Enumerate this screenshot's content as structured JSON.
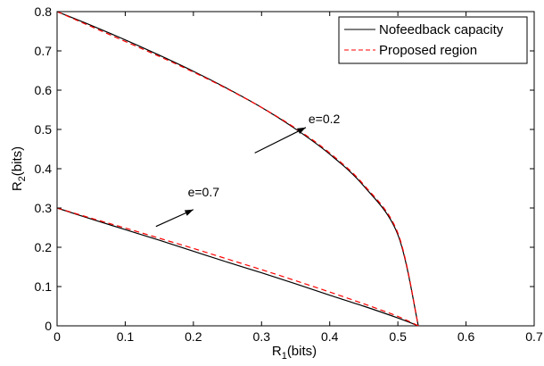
{
  "chart_data": {
    "type": "line",
    "title": "",
    "xlabel": {
      "main": "R",
      "sub": "1",
      "rest": "(bits)"
    },
    "ylabel": {
      "main": "R",
      "sub": "2",
      "rest": "(bits)"
    },
    "xlim": [
      0,
      0.7
    ],
    "ylim": [
      0,
      0.8
    ],
    "xticks": [
      0,
      0.1,
      0.2,
      0.3,
      0.4,
      0.5,
      0.6,
      0.7
    ],
    "yticks": [
      0,
      0.1,
      0.2,
      0.3,
      0.4,
      0.5,
      0.6,
      0.7,
      0.8
    ],
    "xtick_labels": [
      "0",
      "0.1",
      "0.2",
      "0.3",
      "0.4",
      "0.5",
      "0.6",
      "0.7"
    ],
    "ytick_labels": [
      "0",
      "0.1",
      "0.2",
      "0.3",
      "0.4",
      "0.5",
      "0.6",
      "0.7",
      "0.8"
    ],
    "grid": false,
    "legend_position": "top-right",
    "colors": {
      "nofeedback": "#000000",
      "proposed": "#ff0000"
    },
    "series": [
      {
        "name": "Nofeedback capacity",
        "style": "solid",
        "color": "#000000",
        "curve": "e=0.2",
        "x": [
          0,
          0.05,
          0.1,
          0.15,
          0.2,
          0.25,
          0.3,
          0.35,
          0.4,
          0.45,
          0.5,
          0.53
        ],
        "y": [
          0.8,
          0.765,
          0.728,
          0.689,
          0.648,
          0.604,
          0.556,
          0.501,
          0.437,
          0.356,
          0.232,
          0.0
        ]
      },
      {
        "name": "Proposed region",
        "style": "dashed",
        "color": "#ff0000",
        "curve": "e=0.2",
        "x": [
          0,
          0.05,
          0.1,
          0.15,
          0.2,
          0.25,
          0.3,
          0.35,
          0.4,
          0.45,
          0.5,
          0.53
        ],
        "y": [
          0.8,
          0.762,
          0.724,
          0.686,
          0.646,
          0.603,
          0.556,
          0.503,
          0.44,
          0.359,
          0.236,
          0.0
        ]
      },
      {
        "name": "Nofeedback capacity",
        "style": "solid",
        "color": "#000000",
        "curve": "e=0.7",
        "x": [
          0,
          0.05,
          0.1,
          0.15,
          0.2,
          0.25,
          0.3,
          0.35,
          0.4,
          0.45,
          0.5,
          0.53
        ],
        "y": [
          0.3,
          0.272,
          0.245,
          0.218,
          0.19,
          0.162,
          0.135,
          0.107,
          0.078,
          0.05,
          0.02,
          0.0
        ]
      },
      {
        "name": "Proposed region",
        "style": "dashed",
        "color": "#ff0000",
        "curve": "e=0.7",
        "x": [
          0,
          0.05,
          0.1,
          0.15,
          0.2,
          0.25,
          0.3,
          0.35,
          0.4,
          0.45,
          0.5,
          0.53
        ],
        "y": [
          0.3,
          0.274,
          0.249,
          0.223,
          0.197,
          0.17,
          0.143,
          0.115,
          0.086,
          0.056,
          0.024,
          0.0
        ]
      }
    ],
    "annotations": [
      {
        "text": "e=0.2",
        "from": [
          0.29,
          0.44
        ],
        "to": [
          0.365,
          0.505
        ],
        "label_at": [
          0.392,
          0.516
        ]
      },
      {
        "text": "e=0.7",
        "from": [
          0.145,
          0.253
        ],
        "to": [
          0.2,
          0.296
        ],
        "label_at": [
          0.215,
          0.33
        ]
      }
    ]
  }
}
